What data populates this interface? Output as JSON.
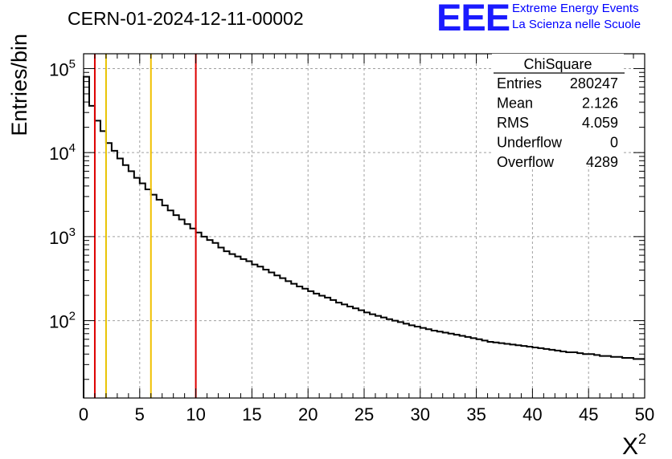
{
  "chart_data": {
    "type": "histogram",
    "title": "CERN-01-2024-12-11-00002",
    "xlabel": "X",
    "xlabel_superscript": "2",
    "ylabel": "Entries/bin",
    "xlim": [
      0,
      50
    ],
    "ylim": [
      12,
      150000
    ],
    "log_y": true,
    "grid": true,
    "x_ticks": [
      0,
      5,
      10,
      15,
      20,
      25,
      30,
      35,
      40,
      45,
      50
    ],
    "y_ticks": [
      {
        "value": 100,
        "base": "10",
        "exp": "2"
      },
      {
        "value": 1000,
        "base": "10",
        "exp": "3"
      },
      {
        "value": 10000,
        "base": "10",
        "exp": "4"
      },
      {
        "value": 100000,
        "base": "10",
        "exp": "5"
      }
    ],
    "bin_width": 0.5,
    "bin_contents": [
      80000,
      36000,
      24000,
      18000,
      13000,
      10500,
      8500,
      7100,
      6000,
      5000,
      4300,
      3650,
      3150,
      2750,
      2350,
      2050,
      1800,
      1600,
      1410,
      1250,
      1120,
      1000,
      910,
      840,
      740,
      670,
      620,
      580,
      540,
      510,
      465,
      440,
      405,
      375,
      345,
      320,
      295,
      275,
      255,
      240,
      224,
      210,
      198,
      188,
      176,
      164,
      156,
      147,
      140,
      133,
      125,
      119,
      114,
      109,
      104,
      100,
      96,
      92,
      88,
      85,
      82,
      79,
      76,
      74,
      72,
      70,
      68,
      66,
      64,
      62,
      60,
      58,
      56,
      55,
      54,
      53,
      52,
      51,
      50,
      49,
      48,
      47,
      46,
      45,
      44,
      43,
      42,
      42,
      41,
      40,
      40,
      39,
      38,
      38,
      37,
      37,
      36,
      36,
      35,
      35
    ],
    "vertical_lines": [
      {
        "x": 1,
        "color": "#dd0000"
      },
      {
        "x": 2,
        "color": "#e8c400"
      },
      {
        "x": 6,
        "color": "#f0c000"
      },
      {
        "x": 10,
        "color": "#dd0000"
      }
    ],
    "stats_box": {
      "title": "ChiSquare",
      "rows": [
        {
          "label": "Entries",
          "value": "280247"
        },
        {
          "label": "Mean",
          "value": "2.126"
        },
        {
          "label": "RMS",
          "value": "4.059"
        },
        {
          "label": "Underflow",
          "value": "0"
        },
        {
          "label": "Overflow",
          "value": "4289"
        }
      ]
    }
  },
  "logo": {
    "mark": "EEE",
    "line1": "Extreme Energy Events",
    "line2": "La Scienza nelle Scuole",
    "color": "#1a1aff"
  }
}
